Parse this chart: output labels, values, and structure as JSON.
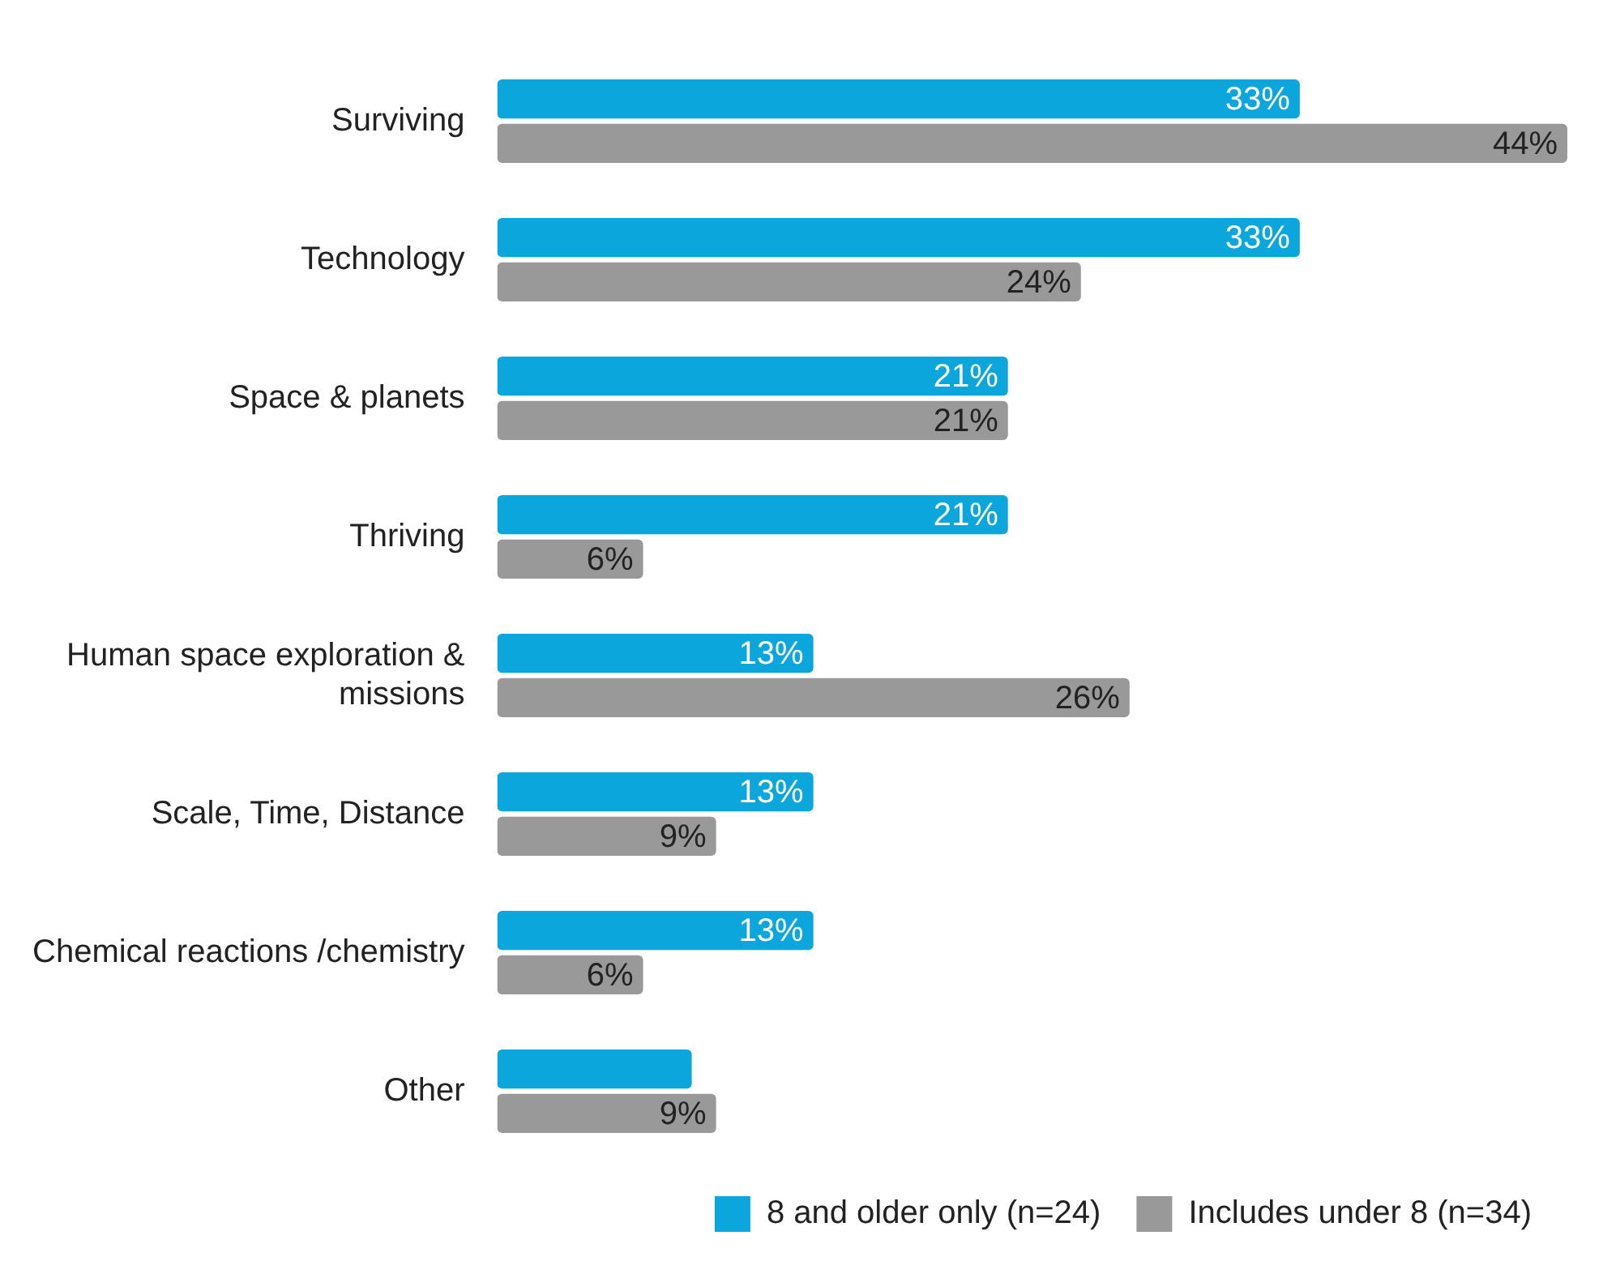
{
  "chart_data": {
    "type": "bar",
    "orientation": "horizontal",
    "categories": [
      "Surviving",
      "Technology",
      "Space & planets",
      "Thriving",
      "Human space exploration & missions",
      "Scale, Time, Distance",
      "Chemical reactions /chemistry",
      "Other"
    ],
    "series": [
      {
        "name": "8 and older only (n=24)",
        "color": "#0aa6dc",
        "values": [
          33,
          33,
          21,
          21,
          13,
          13,
          13,
          8
        ],
        "value_labels": [
          "33%",
          "33%",
          "21%",
          "21%",
          "13%",
          "13%",
          "13%",
          null
        ]
      },
      {
        "name": "Includes under 8 (n=34)",
        "color": "#999999",
        "values": [
          44,
          24,
          21,
          6,
          26,
          9,
          6,
          9
        ],
        "value_labels": [
          "44%",
          "24%",
          "21%",
          "6%",
          "26%",
          "9%",
          "6%",
          "9%"
        ]
      }
    ],
    "legend": "bottom right"
  }
}
